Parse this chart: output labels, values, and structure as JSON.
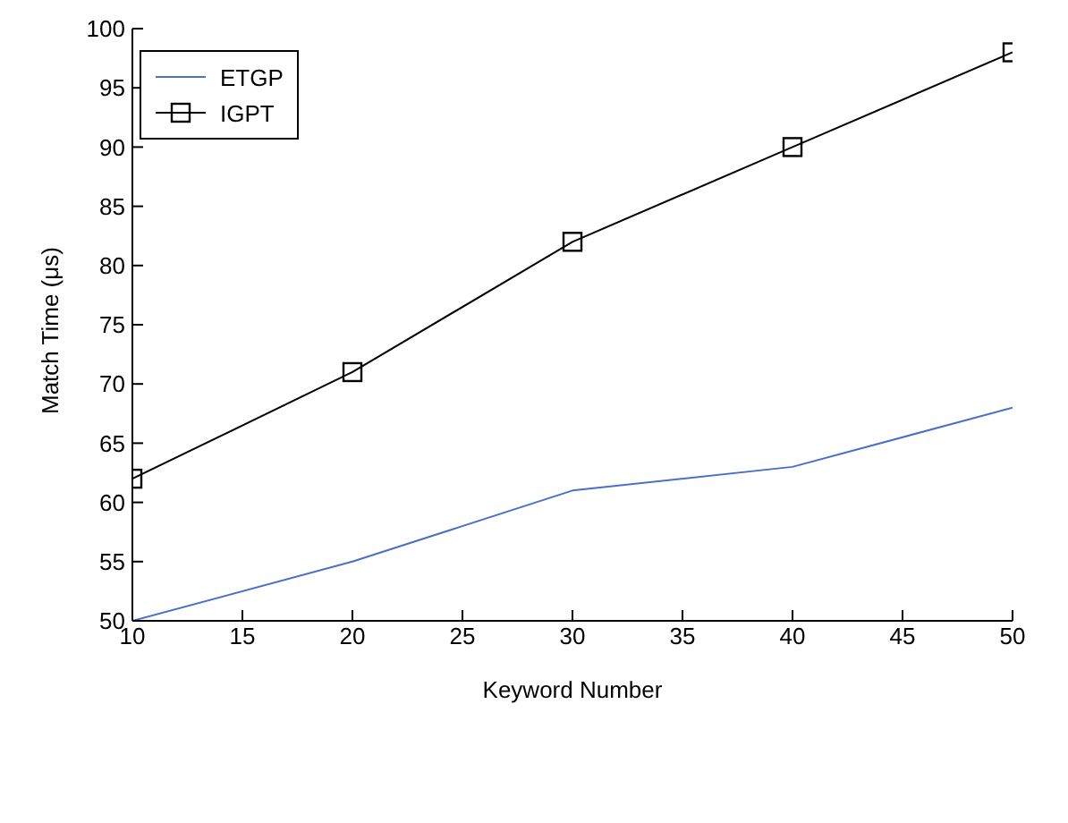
{
  "chart_data": {
    "type": "line",
    "xlabel": "Keyword Number",
    "ylabel": "Match Time (μs)",
    "x": [
      10,
      20,
      30,
      40,
      50
    ],
    "series": [
      {
        "name": "ETGP",
        "color": "#4a6fc9",
        "values": [
          50,
          55,
          61,
          63,
          68
        ],
        "marker": "none"
      },
      {
        "name": "IGPT",
        "color": "#000000",
        "values": [
          62,
          71,
          82,
          90,
          98
        ],
        "marker": "square"
      }
    ],
    "xlim": [
      10,
      50
    ],
    "xticks": [
      10,
      15,
      20,
      25,
      30,
      35,
      40,
      45,
      50
    ],
    "ylim": [
      50,
      100
    ],
    "yticks": [
      50,
      55,
      60,
      65,
      70,
      75,
      80,
      85,
      90,
      95,
      100
    ],
    "grid": false,
    "legend": "top left",
    "line_style": "solid"
  }
}
